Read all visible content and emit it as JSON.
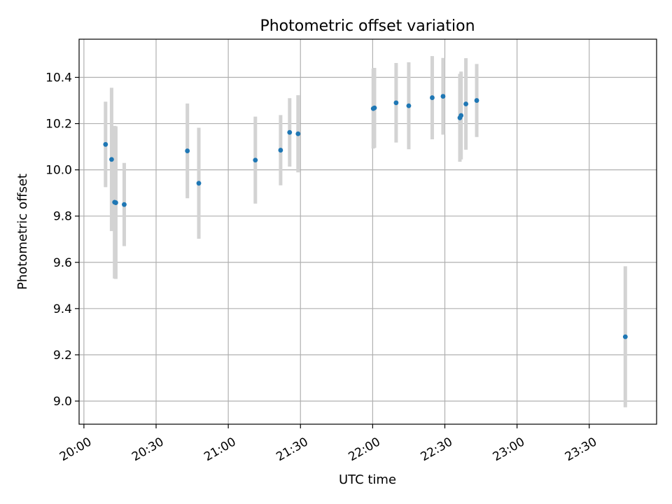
{
  "chart_data": {
    "type": "scatter",
    "title": "Photometric offset variation",
    "xlabel": "UTC time",
    "ylabel": "Photometric offset",
    "xlim": [
      "19:58",
      "23:58"
    ],
    "ylim": [
      8.9,
      10.565
    ],
    "x_ticks": [
      "20:00",
      "20:30",
      "21:00",
      "21:30",
      "22:00",
      "22:30",
      "23:00",
      "23:30"
    ],
    "y_ticks": [
      "9.0",
      "9.2",
      "9.4",
      "9.6",
      "9.8",
      "10.0",
      "10.2",
      "10.4"
    ],
    "grid": true,
    "colors": {
      "point": "#1f77b4",
      "errorbar": "#d3d3d3",
      "grid": "#b0b0b0"
    },
    "series": [
      {
        "points": [
          {
            "x": "20:09:00",
            "y": 10.11,
            "err": 0.185
          },
          {
            "x": "20:11:30",
            "y": 10.045,
            "err": 0.31
          },
          {
            "x": "20:12:45",
            "y": 9.86,
            "err": 0.33
          },
          {
            "x": "20:13:15",
            "y": 9.858,
            "err": 0.33
          },
          {
            "x": "20:16:45",
            "y": 9.85,
            "err": 0.18
          },
          {
            "x": "20:43:00",
            "y": 10.082,
            "err": 0.205
          },
          {
            "x": "20:47:45",
            "y": 9.942,
            "err": 0.24
          },
          {
            "x": "21:11:15",
            "y": 10.042,
            "err": 0.188
          },
          {
            "x": "21:21:45",
            "y": 10.085,
            "err": 0.152
          },
          {
            "x": "21:25:30",
            "y": 10.162,
            "err": 0.148
          },
          {
            "x": "21:29:00",
            "y": 10.156,
            "err": 0.167
          },
          {
            "x": "22:00:15",
            "y": 10.265,
            "err": 0.173
          },
          {
            "x": "22:00:45",
            "y": 10.268,
            "err": 0.173
          },
          {
            "x": "22:09:45",
            "y": 10.29,
            "err": 0.172
          },
          {
            "x": "22:15:00",
            "y": 10.277,
            "err": 0.188
          },
          {
            "x": "22:24:45",
            "y": 10.312,
            "err": 0.18
          },
          {
            "x": "22:29:15",
            "y": 10.318,
            "err": 0.166
          },
          {
            "x": "22:36:15",
            "y": 10.225,
            "err": 0.19
          },
          {
            "x": "22:36:45",
            "y": 10.235,
            "err": 0.19
          },
          {
            "x": "22:38:45",
            "y": 10.285,
            "err": 0.198
          },
          {
            "x": "22:43:15",
            "y": 10.3,
            "err": 0.158
          },
          {
            "x": "23:45:00",
            "y": 9.278,
            "err": 0.305
          }
        ]
      }
    ]
  }
}
